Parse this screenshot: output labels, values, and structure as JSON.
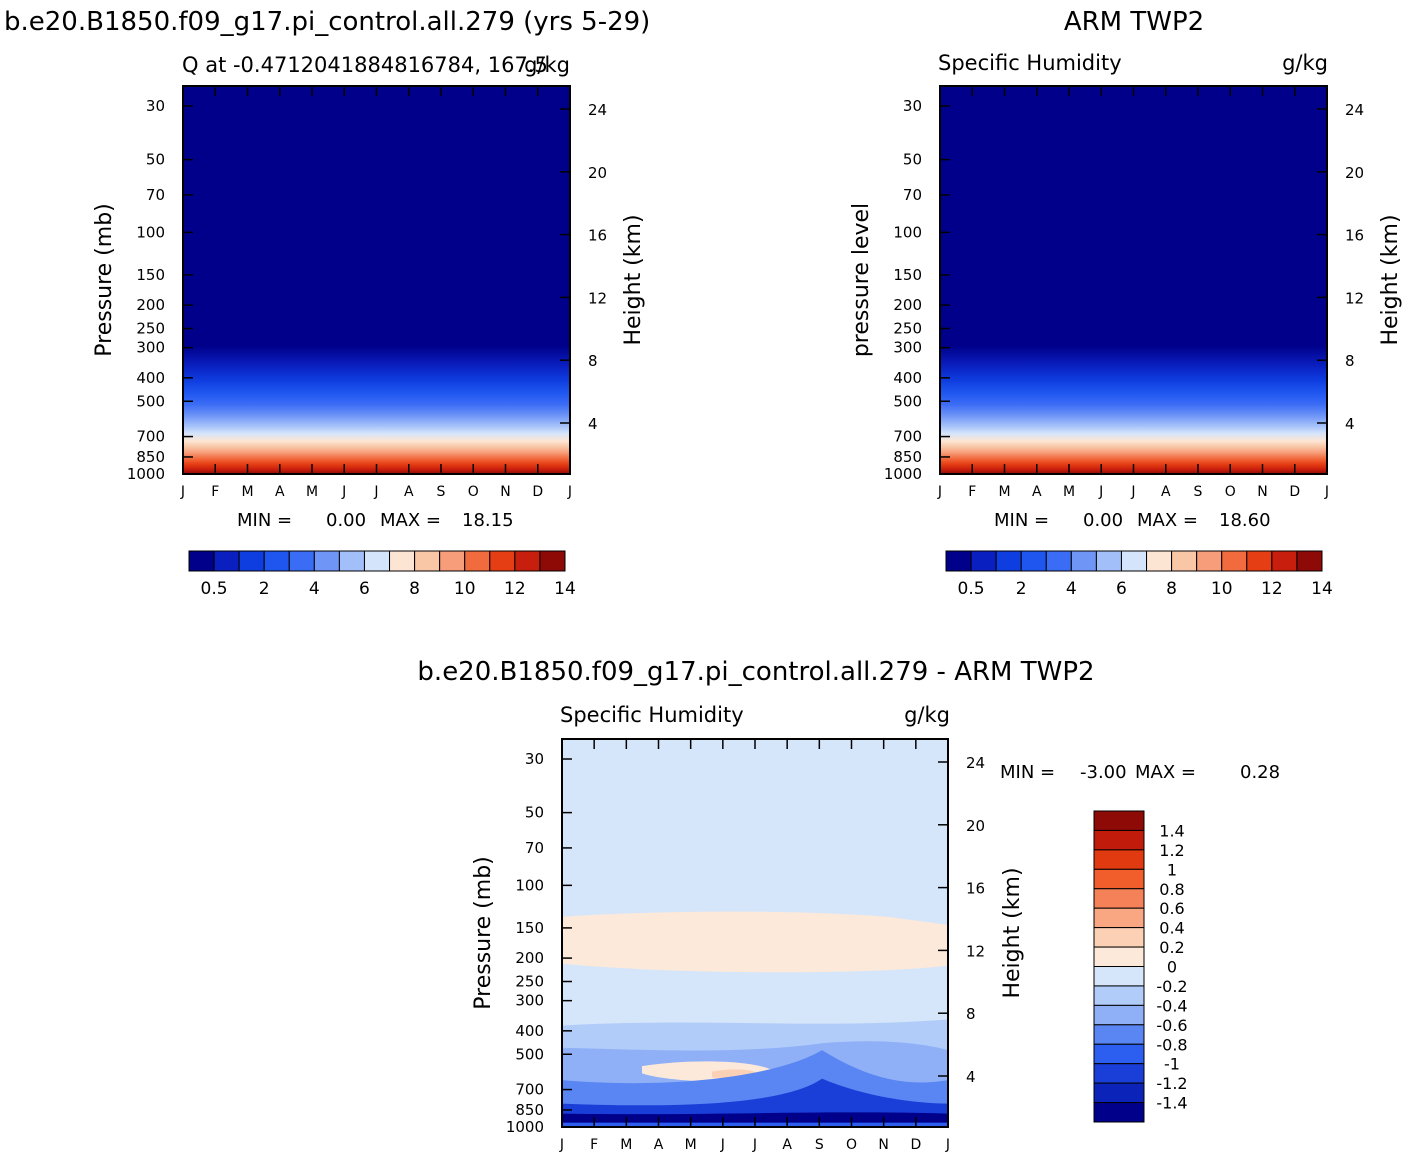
{
  "figure": {
    "top_left_header": "b.e20.B1850.f09_g17.pi_control.all.279 (yrs 5-29)",
    "top_right_header": "ARM TWP2",
    "bottom_header": "b.e20.B1850.f09_g17.pi_control.all.279 - ARM TWP2"
  },
  "chart_data": [
    {
      "type": "heatmap",
      "title_left": "Q at -0.4712041884816784, 167.5",
      "title_right": "g/kg",
      "ylabel": "Pressure (mb)",
      "ylabel_right": "Height (km)",
      "x_ticks": [
        "J",
        "F",
        "M",
        "A",
        "M",
        "J",
        "J",
        "A",
        "S",
        "O",
        "N",
        "D",
        "J"
      ],
      "y_ticks": [
        "30",
        "50",
        "70",
        "100",
        "150",
        "200",
        "250",
        "300",
        "400",
        "500",
        "700",
        "850",
        "1000"
      ],
      "y_ticks_right": [
        "24",
        "20",
        "16",
        "12",
        "8",
        "4"
      ],
      "ylim": [
        30,
        1000
      ],
      "y_scale": "log",
      "stats": {
        "min_label": "MIN =",
        "min": "0.00",
        "max_label": "MAX =",
        "max": "18.15"
      },
      "colorbar": {
        "orientation": "horizontal",
        "labels": [
          "0.5",
          "2",
          "4",
          "6",
          "8",
          "10",
          "12",
          "14"
        ],
        "colors": [
          "#00008a",
          "#0a1fc0",
          "#0f3ee0",
          "#2056f0",
          "#3b6cf5",
          "#6f95f7",
          "#a3bffa",
          "#d3e4fb",
          "#fde5d3",
          "#f9c6a6",
          "#f79d7a",
          "#f26b3e",
          "#e63e14",
          "#c81e0d",
          "#8e0a07"
        ]
      },
      "data_note": "Specific humidity; near 0 above 300 mb rising to ~18 g/kg at 1000 mb."
    },
    {
      "type": "heatmap",
      "title_left": "Specific Humidity",
      "title_right": "g/kg",
      "ylabel": "pressure level",
      "ylabel_right": "Height (km)",
      "x_ticks": [
        "J",
        "F",
        "M",
        "A",
        "M",
        "J",
        "J",
        "A",
        "S",
        "O",
        "N",
        "D",
        "J"
      ],
      "y_ticks": [
        "30",
        "50",
        "70",
        "100",
        "150",
        "200",
        "250",
        "300",
        "400",
        "500",
        "700",
        "850",
        "1000"
      ],
      "y_ticks_right": [
        "24",
        "20",
        "16",
        "12",
        "8",
        "4"
      ],
      "ylim": [
        30,
        1000
      ],
      "y_scale": "log",
      "stats": {
        "min_label": "MIN =",
        "min": "0.00",
        "max_label": "MAX =",
        "max": "18.60"
      },
      "colorbar": {
        "orientation": "horizontal",
        "labels": [
          "0.5",
          "2",
          "4",
          "6",
          "8",
          "10",
          "12",
          "14"
        ],
        "colors": [
          "#00008a",
          "#0a1fc0",
          "#0f3ee0",
          "#2056f0",
          "#3b6cf5",
          "#6f95f7",
          "#a3bffa",
          "#d3e4fb",
          "#fde5d3",
          "#f9c6a6",
          "#f79d7a",
          "#f26b3e",
          "#e63e14",
          "#c81e0d",
          "#8e0a07"
        ]
      }
    },
    {
      "type": "heatmap",
      "title_left": "Specific Humidity",
      "title_right": "g/kg",
      "ylabel": "Pressure (mb)",
      "ylabel_right": "Height (km)",
      "x_ticks": [
        "J",
        "F",
        "M",
        "A",
        "M",
        "J",
        "J",
        "A",
        "S",
        "O",
        "N",
        "D",
        "J"
      ],
      "y_ticks": [
        "30",
        "50",
        "70",
        "100",
        "150",
        "200",
        "250",
        "300",
        "400",
        "500",
        "700",
        "850",
        "1000"
      ],
      "y_ticks_right": [
        "24",
        "20",
        "16",
        "12",
        "8",
        "4"
      ],
      "ylim": [
        30,
        1000
      ],
      "y_scale": "log",
      "stats": {
        "min_label": "MIN =",
        "min": "-3.00",
        "max_label": "MAX =",
        "max": "0.28"
      },
      "colorbar": {
        "orientation": "vertical",
        "labels": [
          "1.4",
          "1.2",
          "1",
          "0.8",
          "0.6",
          "0.4",
          "0.2",
          "0",
          "-0.2",
          "-0.4",
          "-0.6",
          "-0.8",
          "-1",
          "-1.2",
          "-1.4"
        ],
        "colors": [
          "#8e0a07",
          "#c01b0b",
          "#e23a10",
          "#f25d2c",
          "#f58158",
          "#f9a783",
          "#fcd0b5",
          "#fde9d9",
          "#d5e6fb",
          "#b2ccfa",
          "#8fb0f7",
          "#5a86f3",
          "#2c5ff0",
          "#1a3fd8",
          "#0b23b8",
          "#00008a"
        ]
      }
    }
  ]
}
